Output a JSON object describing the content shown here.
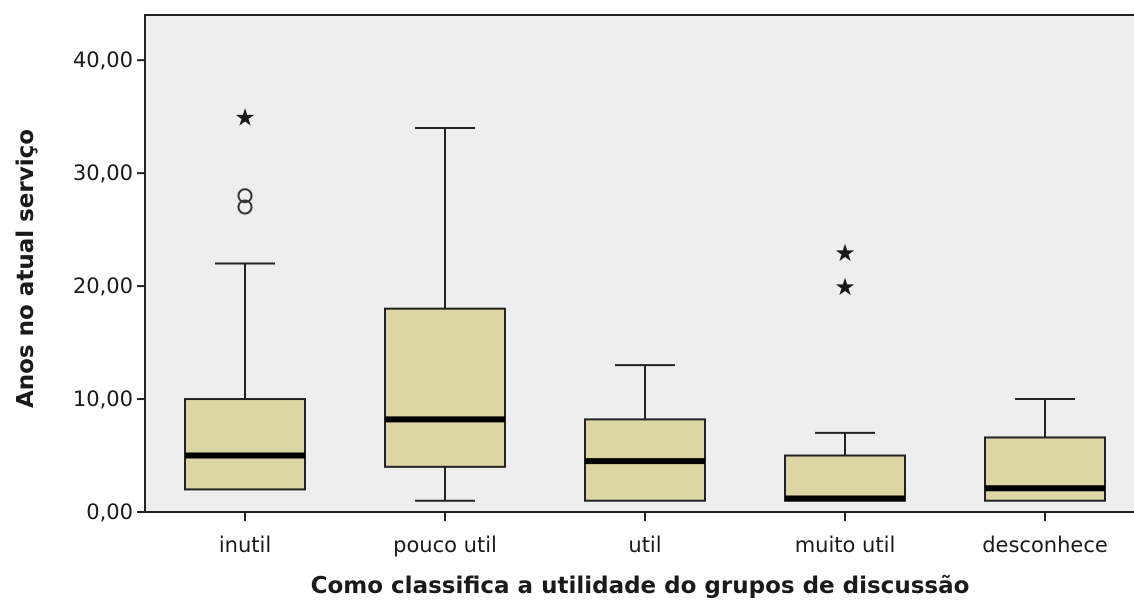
{
  "chart_data": {
    "type": "boxplot",
    "xlabel": "Como classifica a utilidade do grupos de discussão",
    "ylabel": "Anos no atual serviço",
    "ylim": [
      0,
      44
    ],
    "y_ticks": [
      0,
      10,
      20,
      30,
      40
    ],
    "y_tick_labels": [
      "0,00",
      "10,00",
      "20,00",
      "30,00",
      "40,00"
    ],
    "grid": false,
    "box_color": "#dcd6a4",
    "plot_background": "#eeeeee",
    "categories": [
      "inutil",
      "pouco util",
      "util",
      "muito util",
      "desconhece"
    ],
    "boxes": [
      {
        "category": "inutil",
        "whisker_low": 2,
        "q1": 2,
        "median": 5,
        "q3": 10,
        "whisker_high": 22,
        "outliers": [
          27,
          28
        ],
        "extremes": [
          35
        ]
      },
      {
        "category": "pouco util",
        "whisker_low": 1,
        "q1": 4,
        "median": 8.2,
        "q3": 18,
        "whisker_high": 34,
        "outliers": [],
        "extremes": []
      },
      {
        "category": "util",
        "whisker_low": 1,
        "q1": 1,
        "median": 4.5,
        "q3": 8.2,
        "whisker_high": 13,
        "outliers": [],
        "extremes": []
      },
      {
        "category": "muito util",
        "whisker_low": 1,
        "q1": 1,
        "median": 1.2,
        "q3": 5,
        "whisker_high": 7,
        "outliers": [],
        "extremes": [
          20,
          23
        ]
      },
      {
        "category": "desconhece",
        "whisker_low": 1,
        "q1": 1,
        "median": 2.1,
        "q3": 6.6,
        "whisker_high": 10,
        "outliers": [],
        "extremes": []
      }
    ]
  }
}
